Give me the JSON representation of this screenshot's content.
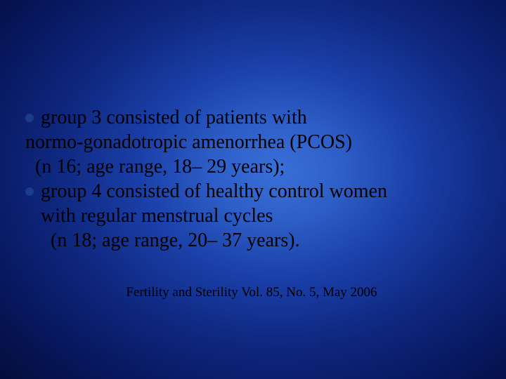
{
  "slide": {
    "background": {
      "type": "radial-gradient",
      "center_color": "#3a6fd8",
      "mid_color": "#0f2880",
      "edge_color": "#000000"
    },
    "text_color": "#000000",
    "bullet_color": "#1a3c8a",
    "body_font": "Times New Roman",
    "body_fontsize_pt": 28,
    "citation_fontsize_pt": 19,
    "bullets": [
      {
        "lead": "group 3 consisted of patients with",
        "continuation": [
          "normo-gonadotropic amenorrhea (PCOS)",
          "  (n 16; age range, 18– 29 years);"
        ]
      },
      {
        "lead": "group 4 consisted of healthy control women",
        "continuation": [
          "with regular menstrual cycles",
          "  (n 18; age range, 20– 37 years)."
        ]
      }
    ],
    "citation": "Fertility and Sterility Vol. 85, No. 5, May 2006"
  }
}
